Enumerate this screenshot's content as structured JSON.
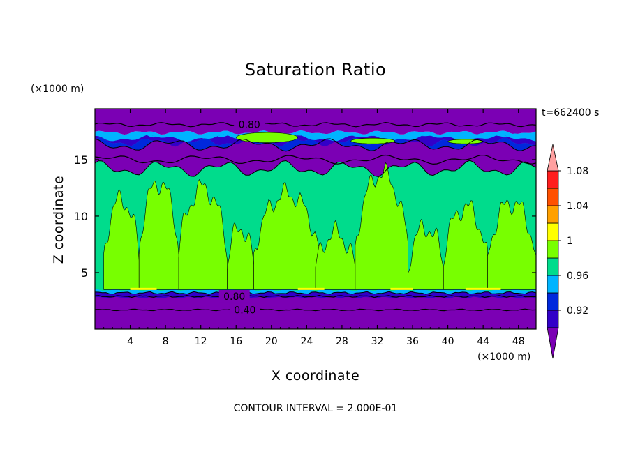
{
  "chart_data": {
    "type": "heatmap",
    "title": "Saturation Ratio",
    "xlabel": "X coordinate",
    "ylabel": "Z coordinate",
    "x_unit": "(×1000 m)",
    "y_unit": "(×1000 m)",
    "time_label": "t=662400 s",
    "footer": "CONTOUR INTERVAL = 2.000E-01",
    "xlim": [
      0,
      50
    ],
    "ylim": [
      0,
      19.5
    ],
    "x_ticks": [
      4,
      8,
      12,
      16,
      20,
      24,
      28,
      32,
      36,
      40,
      44,
      48
    ],
    "y_ticks": [
      5,
      10,
      15
    ],
    "colorbar": {
      "levels": [
        0.92,
        0.96,
        1,
        1.04,
        1.08
      ],
      "tick_labels": [
        "0.92",
        "0.96",
        "1",
        "1.04",
        "1.08"
      ],
      "colors_low_to_high": [
        "#7b00b4",
        "#3200c8",
        "#0028dc",
        "#00b4ff",
        "#00dc8c",
        "#78ff00",
        "#ffff00",
        "#ffa000",
        "#ff5000",
        "#ff1e1e",
        "#ffa0a0"
      ],
      "extend": "both"
    },
    "contour_labels": [
      {
        "text": "0.80",
        "x": 17.5,
        "z": 18.1
      },
      {
        "text": "0.80",
        "x": 15.8,
        "z": 2.9
      },
      {
        "text": "0.40",
        "x": 17.0,
        "z": 1.7
      }
    ],
    "layers": [
      {
        "z_range": [
          0,
          3
        ],
        "value": "< 0.92"
      },
      {
        "z_range": [
          3,
          14
        ],
        "value": "0.96 – 1.04"
      },
      {
        "z_range": [
          14,
          16
        ],
        "value": "< 0.92"
      },
      {
        "z_range": [
          16,
          17.5
        ],
        "value": "0.92 – 1.0"
      },
      {
        "z_range": [
          17.5,
          19.5
        ],
        "value": "< 0.92"
      }
    ]
  }
}
